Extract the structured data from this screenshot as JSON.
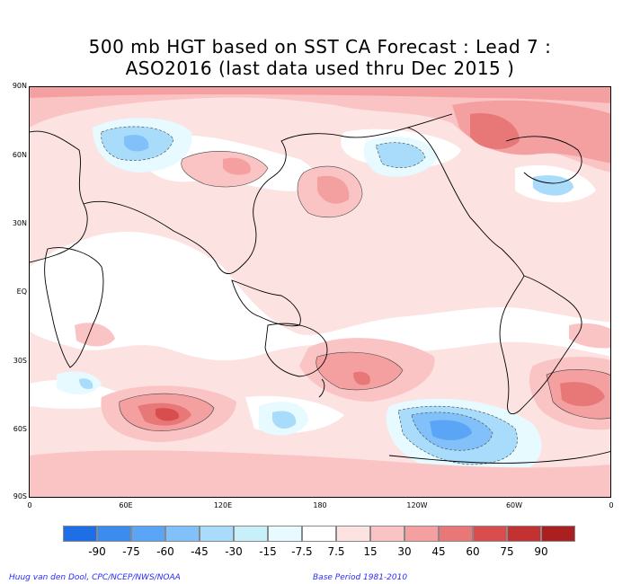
{
  "title_line1": "500 mb HGT based on SST CA Forecast : Lead 7 :",
  "title_line2": "ASO2016 (last data used thru Dec 2015 )",
  "lat_labels": [
    "90N",
    "60N",
    "30N",
    "EQ",
    "30S",
    "60S",
    "90S"
  ],
  "lon_labels": [
    "0",
    "60E",
    "120E",
    "180",
    "120W",
    "60W",
    "0"
  ],
  "legend": {
    "labels": [
      "-90",
      "-75",
      "-60",
      "-45",
      "-30",
      "-15",
      "-7.5",
      "7.5",
      "15",
      "30",
      "45",
      "60",
      "75",
      "90"
    ],
    "colors": [
      "#1e6ee6",
      "#3c8cf0",
      "#5aa5f5",
      "#82c0fa",
      "#a8dcfa",
      "#c8f0fa",
      "#e6faff",
      "#ffffff",
      "#fde2e2",
      "#fbc4c4",
      "#f4a0a0",
      "#e87878",
      "#d84e4e",
      "#c33232",
      "#aa2020"
    ]
  },
  "credit_left": "Huug van den Dool, CPC/NCEP/NWS/NOAA",
  "credit_right": "Base Period 1981-2010",
  "colors": {
    "neg_weak": "#e6faff",
    "neg_mid": "#a8dcfa",
    "neg_strong": "#82c0fa",
    "pos_weak": "#fde2e2",
    "pos_mid": "#fbc4c4",
    "pos_strong": "#f4a0a0",
    "pos_stronger": "#e87878",
    "pos_max": "#d84e4e"
  }
}
